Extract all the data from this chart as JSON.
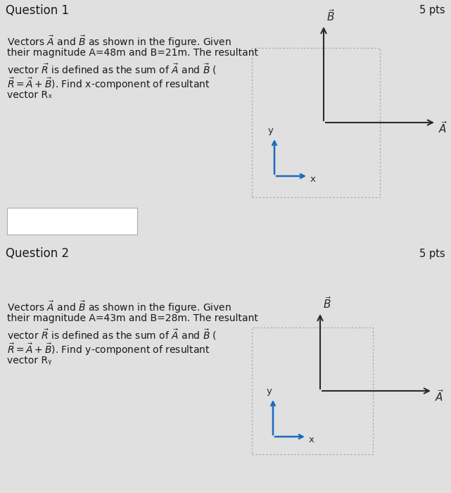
{
  "bg_color": "#e0e0e0",
  "section_bg": "#f0f0f0",
  "header_bg": "#cccccc",
  "white_bg": "#ffffff",
  "arrow_color": "#1a6bbf",
  "axis_color": "#2a2a2a",
  "text_color": "#1a1a1a",
  "question1": {
    "header": "Question 1",
    "pts": "5 pts",
    "lines": [
      "Vectors $\\vec{A}$ and $\\vec{B}$ as shown in the figure. Given",
      "their magnitude A=48m and B=21m. The resultant",
      "vector $\\vec{R}$ is defined as the sum of $\\vec{A}$ and $\\vec{B}$ (",
      "$\\vec{R} = \\vec{A} + \\vec{B}$). Find x-component of resultant",
      "vector Rₓ"
    ]
  },
  "question2": {
    "header": "Question 2",
    "pts": "5 pts",
    "lines": [
      "Vectors $\\vec{A}$ and $\\vec{B}$ as shown in the figure. Given",
      "their magnitude A=43m and B=28m. The resultant",
      "vector $\\vec{R}$ is defined as the sum of $\\vec{A}$ and $\\vec{B}$ (",
      "$\\vec{R} = \\vec{A} + \\vec{B}$). Find y-component of resultant",
      "vector Rᵧ"
    ]
  }
}
